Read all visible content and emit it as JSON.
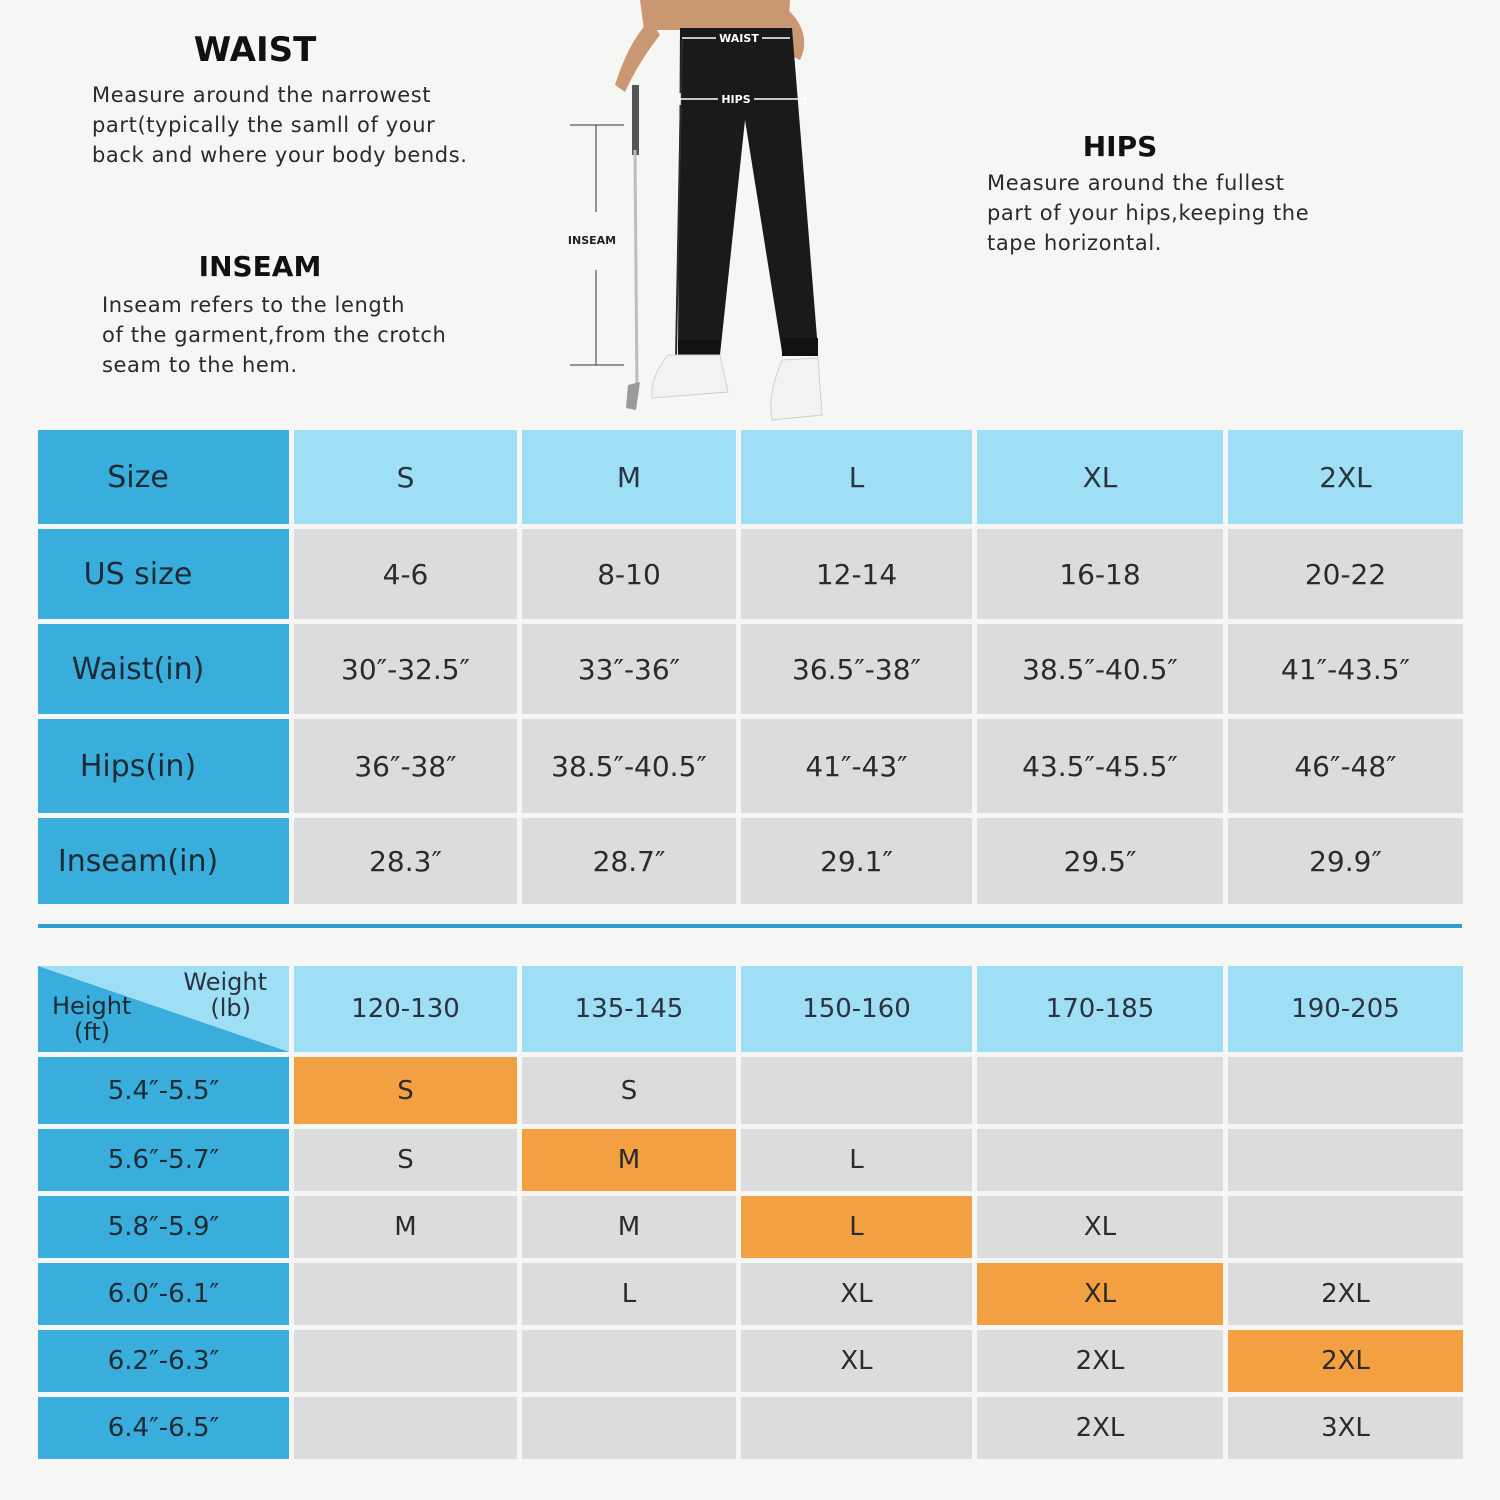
{
  "instructions": {
    "waist": {
      "heading": "WAIST",
      "lines": [
        "Measure around the narrowest",
        "part(typically the samll of your",
        "back and where your body bends."
      ]
    },
    "inseam": {
      "heading": "INSEAM",
      "lines": [
        "Inseam refers to the length",
        "of the garment,from the crotch",
        "seam to the hem."
      ]
    },
    "hips": {
      "heading": "HIPS",
      "lines": [
        "Measure around the fullest",
        "part of your hips,keeping the",
        "tape horizontal."
      ]
    }
  },
  "figure_labels": {
    "waist": "WAIST",
    "hips": "HIPS",
    "inseam": "INSEAM"
  },
  "size_table": {
    "headers": [
      "Size",
      "S",
      "M",
      "L",
      "XL",
      "2XL"
    ],
    "rows": [
      {
        "label": "US size",
        "values": [
          "4-6",
          "8-10",
          "12-14",
          "16-18",
          "20-22"
        ]
      },
      {
        "label": "Waist(in)",
        "values": [
          "30″-32.5″",
          "33″-36″",
          "36.5″-38″",
          "38.5″-40.5″",
          "41″-43.5″"
        ]
      },
      {
        "label": "Hips(in)",
        "values": [
          "36″-38″",
          "38.5″-40.5″",
          "41″-43″",
          "43.5″-45.5″",
          "46″-48″"
        ]
      },
      {
        "label": "Inseam(in)",
        "values": [
          "28.3″",
          "28.7″",
          "29.1″",
          "29.5″",
          "29.9″"
        ]
      }
    ]
  },
  "fit_table": {
    "corner": {
      "weight_line1": "Weight",
      "weight_line2": "(lb)",
      "height_line1": "Height",
      "height_line2": "(ft)"
    },
    "weights": [
      "120-130",
      "135-145",
      "150-160",
      "170-185",
      "190-205"
    ],
    "rows": [
      {
        "height": "5.4″-5.5″",
        "values": [
          "S",
          "S",
          "",
          "",
          ""
        ],
        "highlight": 0
      },
      {
        "height": "5.6″-5.7″",
        "values": [
          "S",
          "M",
          "L",
          "",
          ""
        ],
        "highlight": 1
      },
      {
        "height": "5.8″-5.9″",
        "values": [
          "M",
          "M",
          "L",
          "XL",
          ""
        ],
        "highlight": 2
      },
      {
        "height": "6.0″-6.1″",
        "values": [
          "",
          "L",
          "XL",
          "XL",
          "2XL"
        ],
        "highlight": 3
      },
      {
        "height": "6.2″-6.3″",
        "values": [
          "",
          "",
          "XL",
          "2XL",
          "2XL"
        ],
        "highlight": 4
      },
      {
        "height": "6.4″-6.5″",
        "values": [
          "",
          "",
          "",
          "2XL",
          "3XL"
        ],
        "highlight": -1
      }
    ],
    "highlight_color": "#f2a042"
  },
  "colors": {
    "row_header": "#39aedc",
    "column_header": "#9fdff6",
    "cell": "#dddcdc",
    "divider": "#2f9dcf"
  }
}
